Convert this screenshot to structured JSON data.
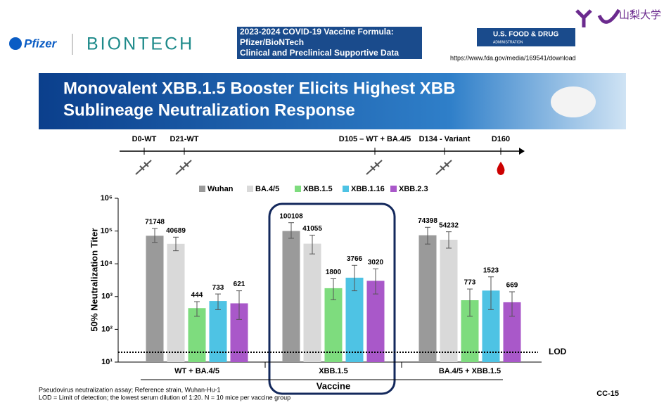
{
  "header": {
    "pfizer": "Pfizer",
    "biontech": "BIONTECH",
    "box_lines": [
      "2023-2024 COVID-19 Vaccine Formula:",
      "Pfizer/BioNTech",
      "Clinical and Preclinical Supportive Data"
    ],
    "fda": "U.S. FOOD & DRUG",
    "fda_sub": "ADMINISTRATION",
    "url": "https://www.fda.gov/media/169541/download",
    "university": "山梨大学"
  },
  "title_lines": [
    "Monovalent XBB.1.5 Booster Elicits Highest XBB",
    "Sublineage Neutralization Response"
  ],
  "timeline": {
    "events": [
      "D0-WT",
      "D21-WT",
      "D105 – WT + BA.4/5",
      "D134 - Variant",
      "D160"
    ]
  },
  "chart_data": {
    "type": "bar",
    "y_label": "50% Neutralization Titer",
    "x_label": "Vaccine",
    "log_scale": true,
    "categories": [
      "WT + BA.4/5",
      "XBB.1.5",
      "BA.4/5 + XBB.1.5"
    ],
    "ylim": [
      10,
      1000000
    ],
    "yticks": [
      {
        "value": 10,
        "label": "10¹"
      },
      {
        "value": 100,
        "label": "10²"
      },
      {
        "value": 1000,
        "label": "10³"
      },
      {
        "value": 10000,
        "label": "10⁴"
      },
      {
        "value": 100000,
        "label": "10⁵"
      },
      {
        "value": 1000000,
        "label": "10⁶"
      }
    ],
    "reference_line": {
      "value": 20,
      "label": "LOD"
    },
    "legend": "top",
    "series": [
      {
        "name": "Wuhan",
        "color": "#9a9a9a",
        "values": [
          71748,
          100108,
          74398
        ],
        "error_low": [
          45000,
          60000,
          40000
        ],
        "error_high": [
          120000,
          180000,
          130000
        ]
      },
      {
        "name": "BA.4/5",
        "color": "#d9d9d9",
        "values": [
          40689,
          41055,
          54232
        ],
        "error_low": [
          25000,
          20000,
          30000
        ],
        "error_high": [
          65000,
          75000,
          95000
        ]
      },
      {
        "name": "XBB.1.5",
        "color": "#7edc7e",
        "values": [
          444,
          1800,
          773
        ],
        "error_low": [
          250,
          800,
          250
        ],
        "error_high": [
          700,
          3500,
          1700
        ]
      },
      {
        "name": "XBB.1.16",
        "color": "#4ec3e4",
        "values": [
          733,
          3766,
          1523
        ],
        "error_low": [
          400,
          1500,
          400
        ],
        "error_high": [
          1200,
          9000,
          4000
        ]
      },
      {
        "name": "XBB.2.3",
        "color": "#a958c9",
        "values": [
          621,
          3020,
          669
        ],
        "error_low": [
          200,
          1200,
          250
        ],
        "error_high": [
          1500,
          7000,
          1400
        ]
      }
    ]
  },
  "footnotes": [
    "Pseudovirus neutralization assay; Reference strain, Wuhan-Hu-1",
    "LOD = Limit of detection; the lowest serum dilution of 1:20. N = 10 mice per vaccine group"
  ],
  "slide_id": "CC-15"
}
